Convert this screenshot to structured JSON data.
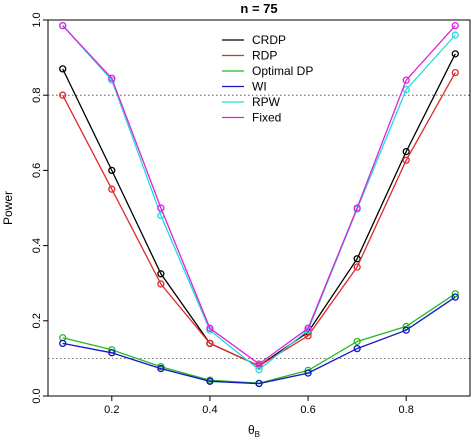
{
  "chart_data": {
    "type": "line",
    "title": "n = 75",
    "xlabel": "θ",
    "xlabel_sub": "B",
    "ylabel": "Power",
    "x": [
      0.1,
      0.2,
      0.3,
      0.4,
      0.5,
      0.6,
      0.7,
      0.8,
      0.9
    ],
    "xlim": [
      0.07,
      0.93
    ],
    "ylim": [
      0.0,
      1.0
    ],
    "xticks": [
      "0.2",
      "0.4",
      "0.6",
      "0.8"
    ],
    "xtick_values": [
      0.2,
      0.4,
      0.6,
      0.8
    ],
    "yticks": [
      "0.0",
      "0.2",
      "0.4",
      "0.6",
      "0.8",
      "1.0"
    ],
    "ytick_values": [
      0.0,
      0.2,
      0.4,
      0.6,
      0.8,
      1.0
    ],
    "reference_lines": [
      0.8,
      0.1
    ],
    "grid": false,
    "legend_position": "top-center",
    "series": [
      {
        "name": "CRDP",
        "color": "#000000",
        "values": [
          0.87,
          0.6,
          0.325,
          0.14,
          0.08,
          0.17,
          0.365,
          0.65,
          0.91
        ]
      },
      {
        "name": "RDP",
        "color": "#df2a2a",
        "values": [
          0.8,
          0.55,
          0.298,
          0.14,
          0.08,
          0.16,
          0.343,
          0.627,
          0.86
        ]
      },
      {
        "name": "Optimal DP",
        "color": "#22bb22",
        "values": [
          0.155,
          0.123,
          0.078,
          0.042,
          0.034,
          0.068,
          0.145,
          0.185,
          0.272
        ]
      },
      {
        "name": "WI",
        "color": "#1515c0",
        "values": [
          0.14,
          0.115,
          0.073,
          0.039,
          0.033,
          0.061,
          0.126,
          0.175,
          0.263
        ]
      },
      {
        "name": "RPW",
        "color": "#22dddd",
        "values": [
          0.985,
          0.84,
          0.48,
          0.175,
          0.07,
          0.175,
          0.497,
          0.815,
          0.96
        ]
      },
      {
        "name": "Fixed",
        "color": "#dd22dd",
        "values": [
          0.985,
          0.845,
          0.5,
          0.18,
          0.085,
          0.18,
          0.5,
          0.84,
          0.985
        ]
      }
    ]
  }
}
